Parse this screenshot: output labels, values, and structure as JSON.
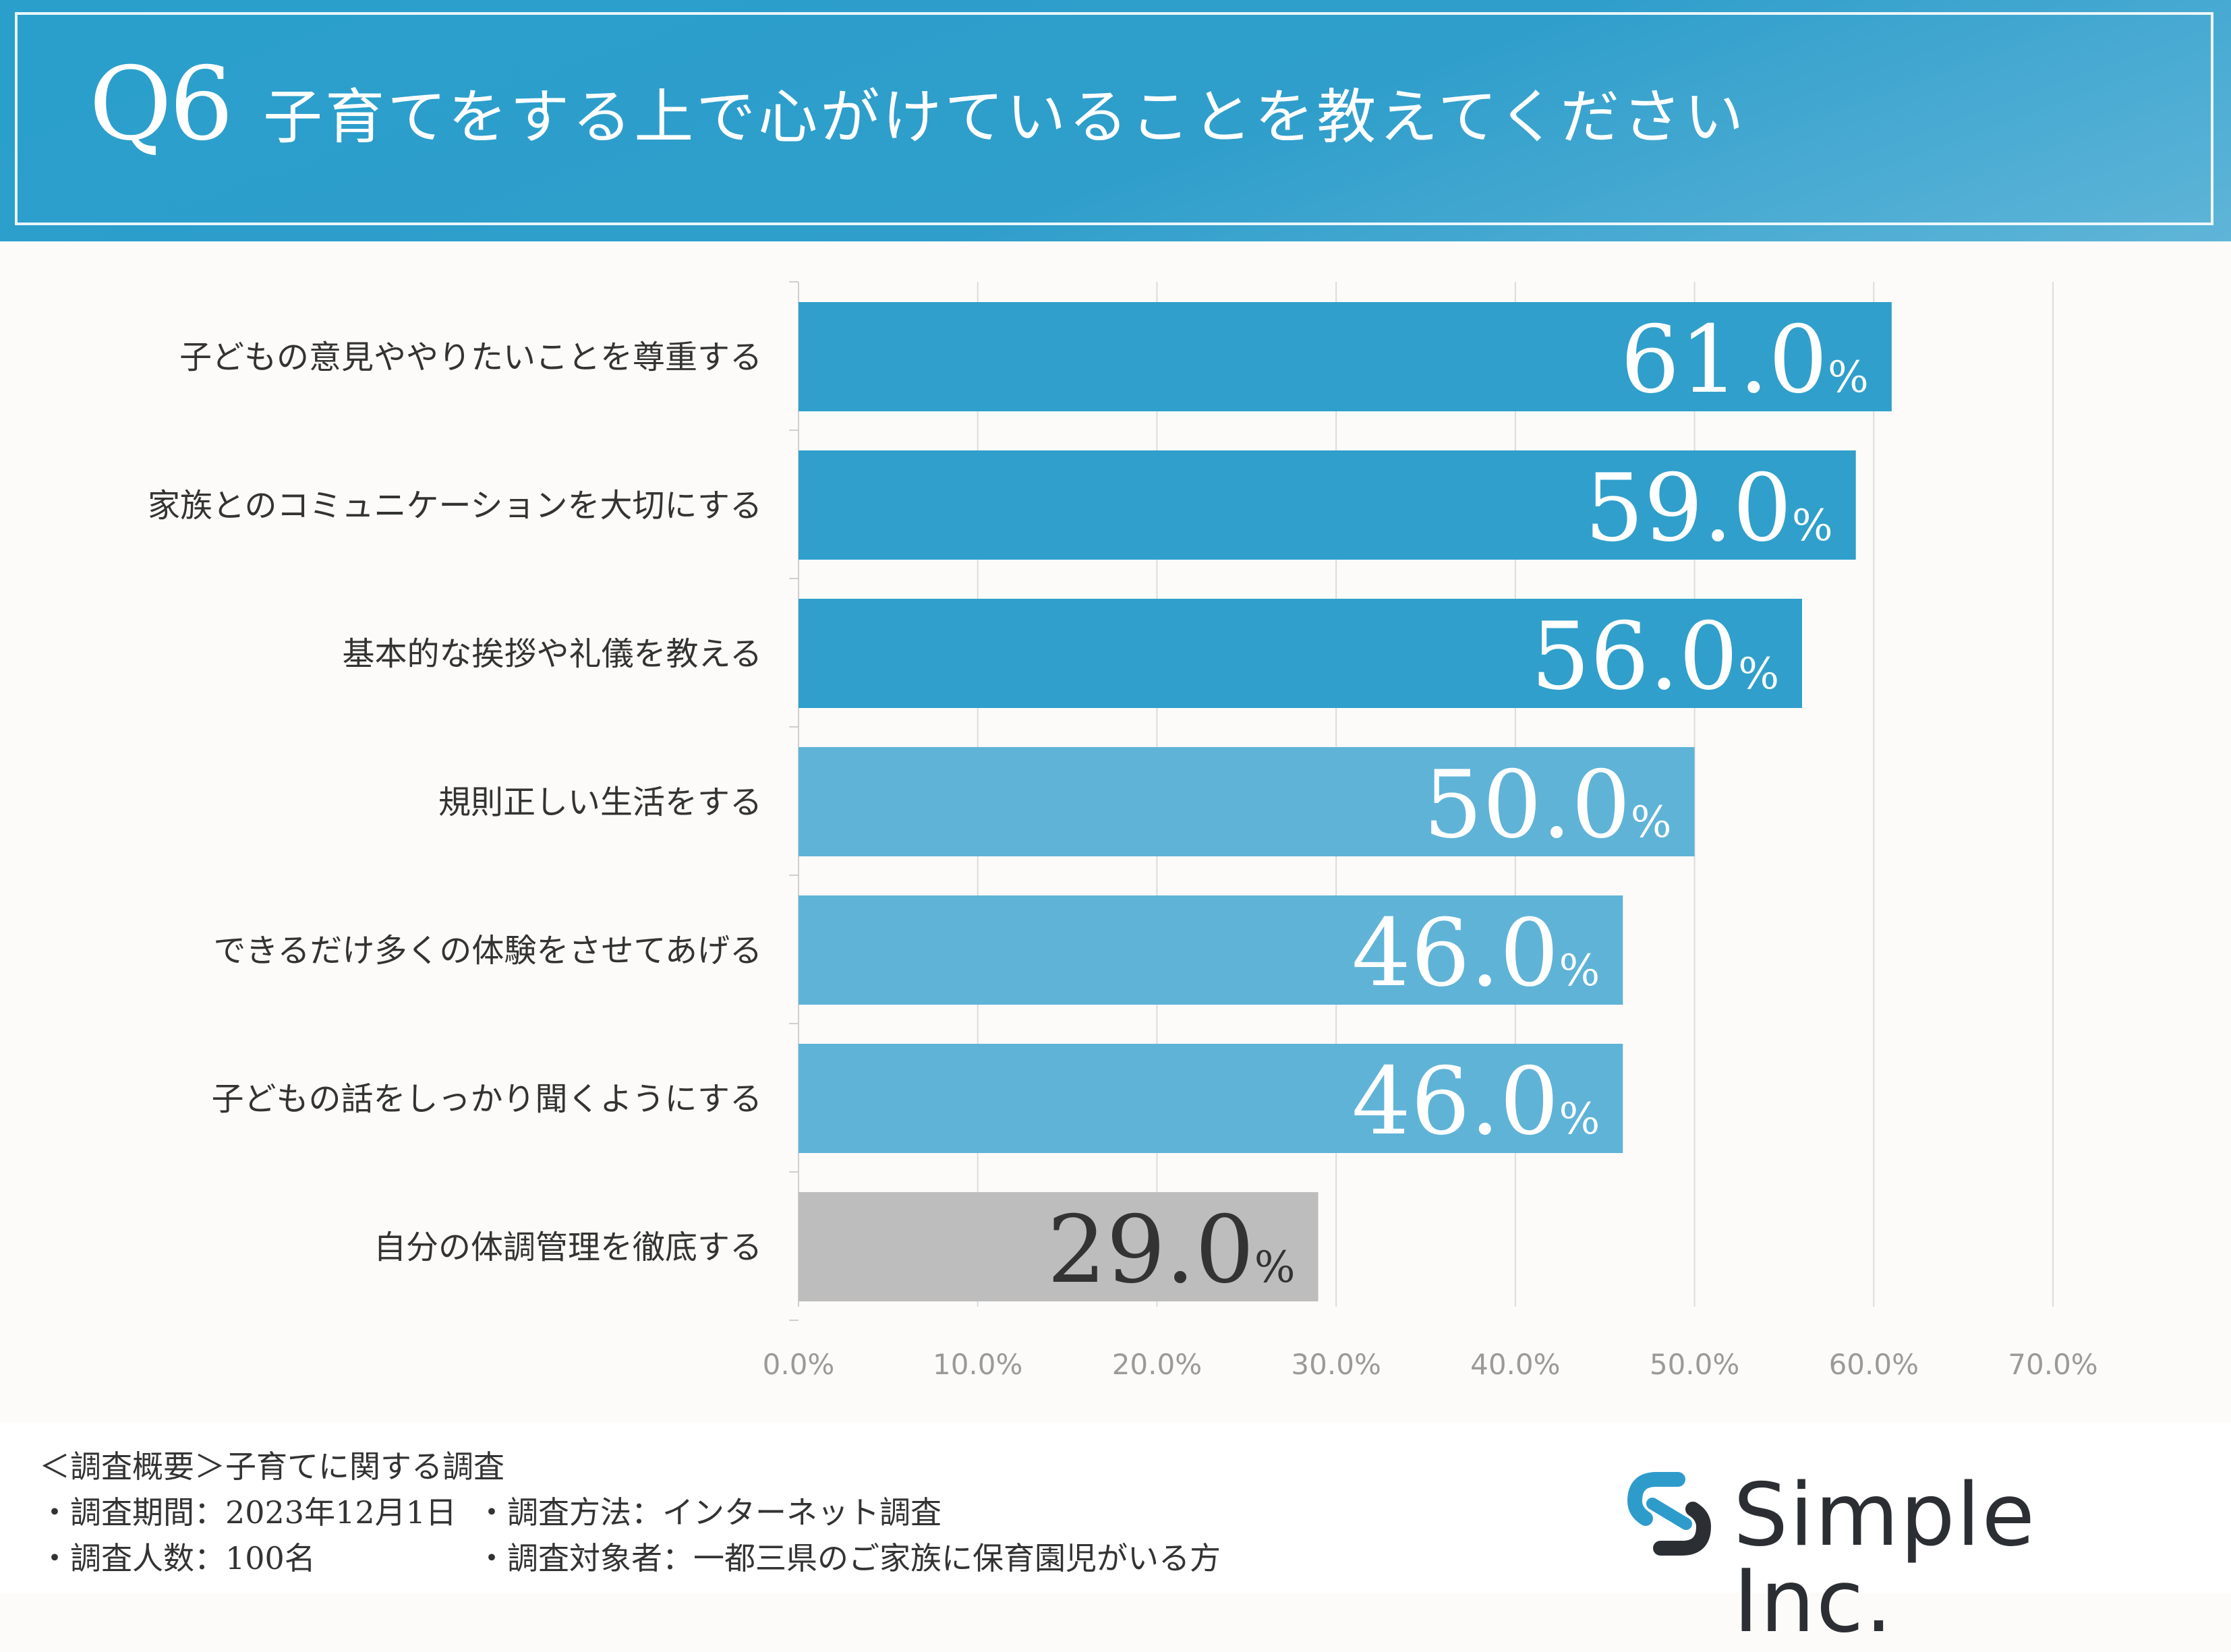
{
  "header": {
    "q_label": "Q6",
    "title": "子育てをする上で心がけていることを教えてください"
  },
  "chart_data": {
    "type": "bar",
    "orientation": "horizontal",
    "categories": [
      "子どもの意見ややりたいことを尊重する",
      "家族とのコミュニケーションを大切にする",
      "基本的な挨拶や礼儀を教える",
      "規則正しい生活をする",
      "できるだけ多くの体験をさせてあげる",
      "子どもの話をしっかり聞くようにする",
      "自分の体調管理を徹底する"
    ],
    "values": [
      61.0,
      59.0,
      56.0,
      50.0,
      46.0,
      46.0,
      29.0
    ],
    "value_labels": [
      "61.0",
      "59.0",
      "56.0",
      "50.0",
      "46.0",
      "46.0",
      "29.0"
    ],
    "value_suffix": "%",
    "bar_colors": [
      "#309fcb",
      "#309fcb",
      "#309fcb",
      "#5fb3d7",
      "#5fb3d7",
      "#5fb3d7",
      "#bdbdbd"
    ],
    "label_colors": [
      "#ffffff",
      "#ffffff",
      "#ffffff",
      "#ffffff",
      "#ffffff",
      "#ffffff",
      "#333333"
    ],
    "xlim": [
      0,
      70
    ],
    "xticks": [
      "0.0%",
      "10.0%",
      "20.0%",
      "30.0%",
      "40.0%",
      "50.0%",
      "60.0%",
      "70.0%"
    ],
    "grid": true
  },
  "footer": {
    "line1": "＜調査概要＞子育てに関する調査",
    "period": "・調査期間：2023年12月1日",
    "method": "・調査方法：インターネット調査",
    "count": "・調査人数：100名",
    "target": "・調査対象者：一都三県のご家族に保育園児がいる方",
    "logo": "Simple Inc."
  },
  "colors": {
    "header_blue": "#2a9fcc",
    "logo_icon": "#2e9ccb"
  }
}
